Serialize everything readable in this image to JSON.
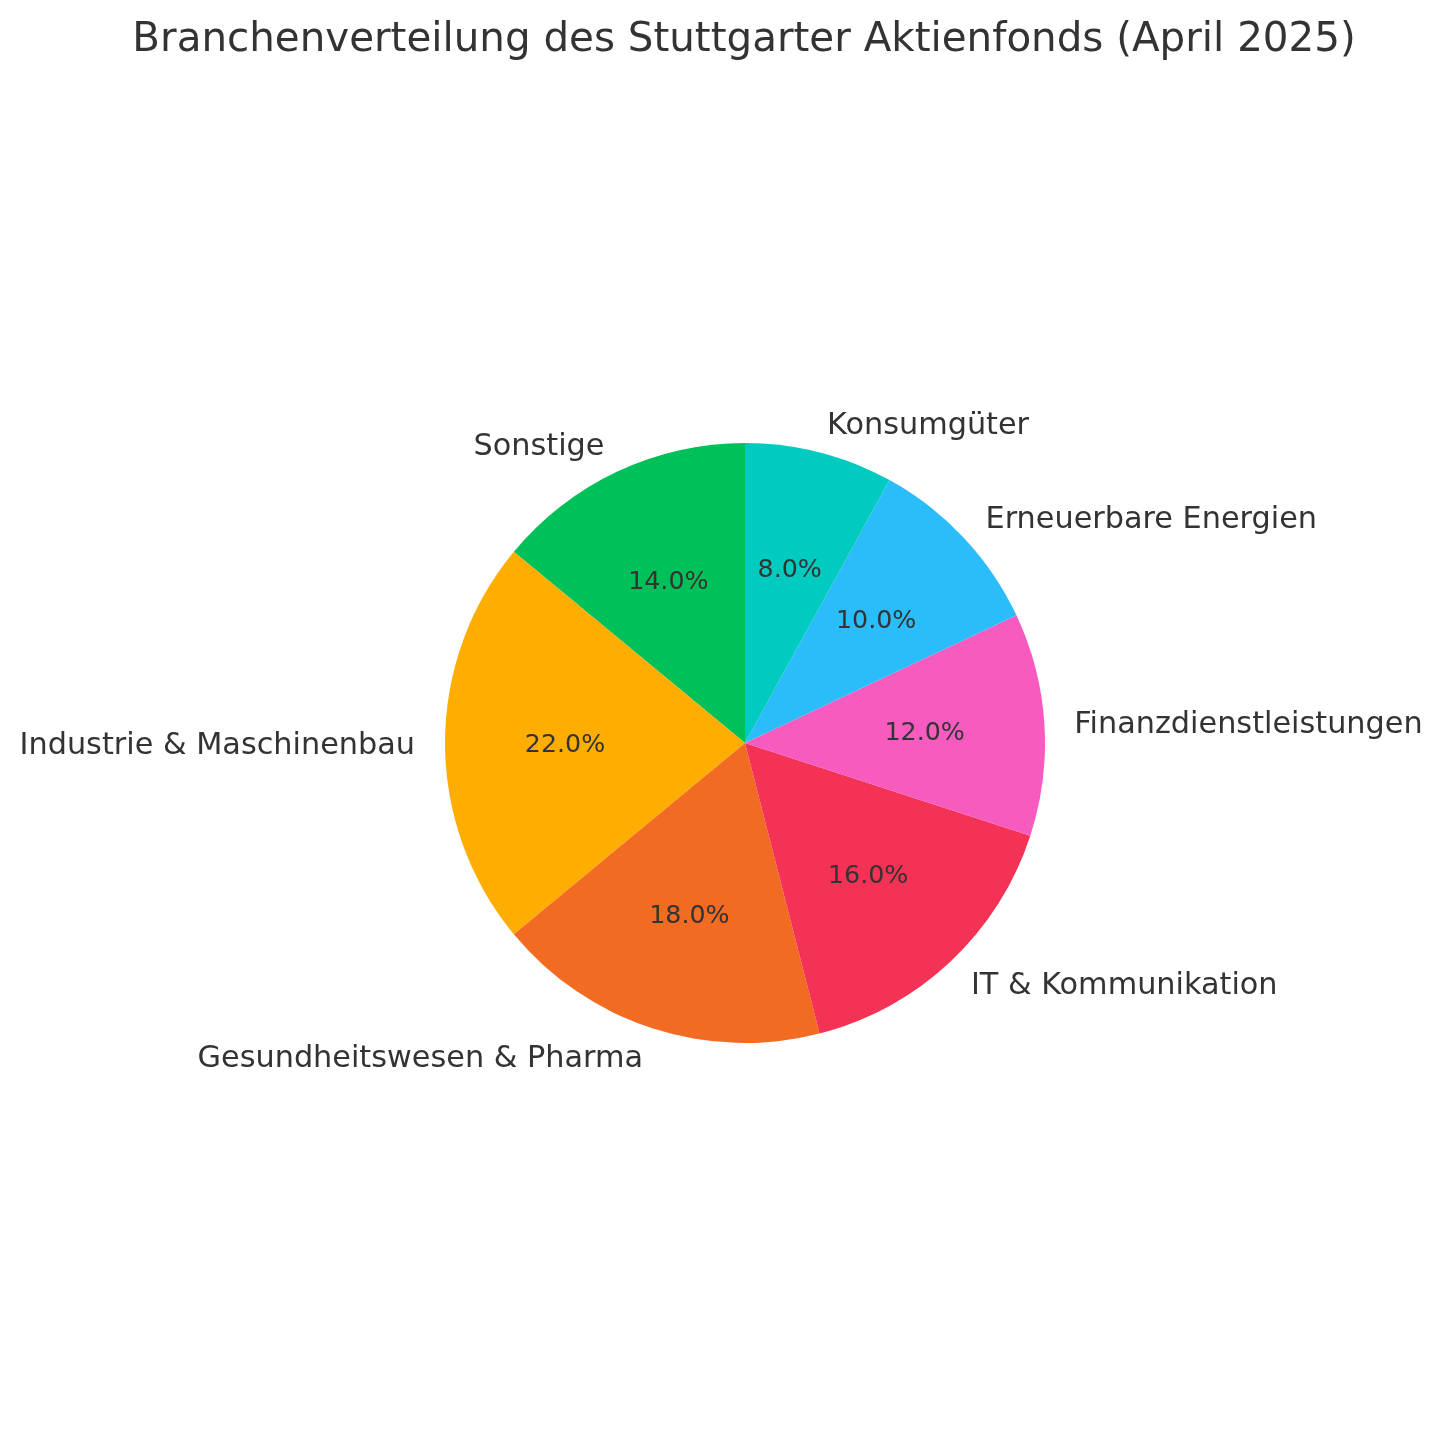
{
  "chart_data": {
    "type": "pie",
    "title": "Branchenverteilung des Stuttgarter Aktienfonds (April 2025)",
    "categories": [
      "Sonstige",
      "Industrie & Maschinenbau",
      "Gesundheitswesen & Pharma",
      "IT & Kommunikation",
      "Finanzdienstleistungen",
      "Erneuerbare Energien",
      "Konsumgüter"
    ],
    "values": [
      14,
      22,
      18,
      16,
      12,
      10,
      8
    ],
    "value_labels": [
      "14.0%",
      "22.0%",
      "18.0%",
      "16.0%",
      "12.0%",
      "10.0%",
      "8.0%"
    ],
    "colors": [
      "#00c05a",
      "#ffae00",
      "#f26b22",
      "#f43256",
      "#f75bbf",
      "#2bbcfa",
      "#00cbc0"
    ]
  }
}
